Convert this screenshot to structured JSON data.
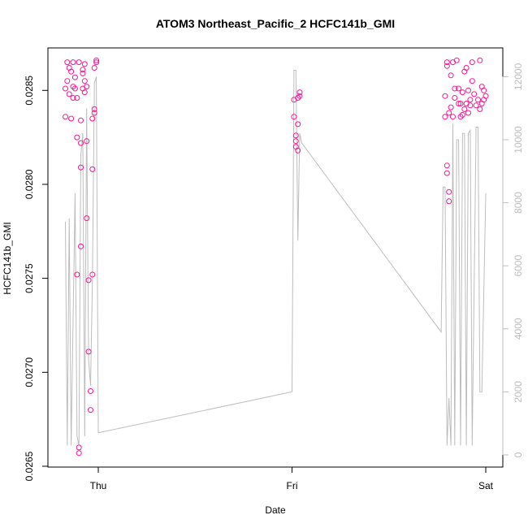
{
  "chart_data": {
    "type": "scatter",
    "title": "ATOM3 Northeast_Pacific_2 HCFC141b_GMI",
    "xlabel": "Date",
    "ylabel": "HCFC141b_GMI",
    "x_ticks": [
      "Thu",
      "Fri",
      "Sat"
    ],
    "x_range_days": [
      -0.2,
      2.0
    ],
    "ylim": [
      0.0265,
      0.0287
    ],
    "y_ticks": [
      "0.0265",
      "0.0270",
      "0.0275",
      "0.0280",
      "0.0285"
    ],
    "y2_ticks": [
      "0",
      "2000",
      "4000",
      "6000",
      "8000",
      "10000",
      "12000"
    ],
    "y2lim": [
      0,
      12500
    ],
    "grid": false,
    "colors": {
      "points": "#ff1493",
      "altitude_line": "#bdbdbd",
      "axes": "#000000"
    },
    "series": [
      {
        "marker": "open-circle",
        "axis": "left",
        "points": [
          [
            -0.17,
            0.02836
          ],
          [
            -0.17,
            0.02851
          ],
          [
            -0.16,
            0.02855
          ],
          [
            -0.16,
            0.02865
          ],
          [
            -0.15,
            0.02862
          ],
          [
            -0.15,
            0.02848
          ],
          [
            -0.14,
            0.02835
          ],
          [
            -0.14,
            0.0286
          ],
          [
            -0.13,
            0.02852
          ],
          [
            -0.13,
            0.02846
          ],
          [
            -0.13,
            0.02865
          ],
          [
            -0.12,
            0.02851
          ],
          [
            -0.12,
            0.02857
          ],
          [
            -0.11,
            0.02846
          ],
          [
            -0.11,
            0.02825
          ],
          [
            -0.11,
            0.02752
          ],
          [
            -0.1,
            0.0266
          ],
          [
            -0.1,
            0.02657
          ],
          [
            -0.1,
            0.02865
          ],
          [
            -0.09,
            0.02809
          ],
          [
            -0.09,
            0.02767
          ],
          [
            -0.09,
            0.02822
          ],
          [
            -0.09,
            0.02834
          ],
          [
            -0.08,
            0.02851
          ],
          [
            -0.08,
            0.02861
          ],
          [
            -0.08,
            0.02859
          ],
          [
            -0.07,
            0.02864
          ],
          [
            -0.07,
            0.02849
          ],
          [
            -0.07,
            0.02855
          ],
          [
            -0.06,
            0.02852
          ],
          [
            -0.06,
            0.02823
          ],
          [
            -0.06,
            0.02782
          ],
          [
            -0.05,
            0.02749
          ],
          [
            -0.05,
            0.02711
          ],
          [
            -0.04,
            0.0269
          ],
          [
            -0.04,
            0.0268
          ],
          [
            -0.03,
            0.02808
          ],
          [
            -0.03,
            0.02835
          ],
          [
            -0.03,
            0.02752
          ],
          [
            -0.02,
            0.02838
          ],
          [
            -0.02,
            0.0284
          ],
          [
            -0.02,
            0.02862
          ],
          [
            -0.01,
            0.02866
          ],
          [
            -0.01,
            0.02865
          ],
          [
            1.01,
            0.02845
          ],
          [
            1.01,
            0.02836
          ],
          [
            1.02,
            0.02826
          ],
          [
            1.02,
            0.02823
          ],
          [
            1.02,
            0.0282
          ],
          [
            1.03,
            0.02818
          ],
          [
            1.03,
            0.02832
          ],
          [
            1.03,
            0.02846
          ],
          [
            1.04,
            0.02849
          ],
          [
            1.04,
            0.02847
          ],
          [
            1.79,
            0.02847
          ],
          [
            1.79,
            0.02836
          ],
          [
            1.8,
            0.02865
          ],
          [
            1.8,
            0.02863
          ],
          [
            1.8,
            0.0281
          ],
          [
            1.8,
            0.02806
          ],
          [
            1.81,
            0.02796
          ],
          [
            1.81,
            0.02791
          ],
          [
            1.81,
            0.02838
          ],
          [
            1.82,
            0.02858
          ],
          [
            1.82,
            0.02841
          ],
          [
            1.83,
            0.02865
          ],
          [
            1.83,
            0.02836
          ],
          [
            1.84,
            0.02851
          ],
          [
            1.84,
            0.02846
          ],
          [
            1.85,
            0.02866
          ],
          [
            1.86,
            0.02843
          ],
          [
            1.86,
            0.02851
          ],
          [
            1.87,
            0.02836
          ],
          [
            1.87,
            0.02843
          ],
          [
            1.88,
            0.02849
          ],
          [
            1.88,
            0.02837
          ],
          [
            1.89,
            0.0286
          ],
          [
            1.89,
            0.0284
          ],
          [
            1.9,
            0.02843
          ],
          [
            1.9,
            0.02862
          ],
          [
            1.91,
            0.0285
          ],
          [
            1.91,
            0.02838
          ],
          [
            1.92,
            0.02842
          ],
          [
            1.92,
            0.02845
          ],
          [
            1.93,
            0.02865
          ],
          [
            1.93,
            0.02855
          ],
          [
            1.94,
            0.02848
          ],
          [
            1.95,
            0.02842
          ],
          [
            1.96,
            0.02845
          ],
          [
            1.97,
            0.0284
          ],
          [
            1.97,
            0.02866
          ],
          [
            1.98,
            0.02852
          ],
          [
            1.98,
            0.02843
          ],
          [
            1.99,
            0.0285
          ],
          [
            1.99,
            0.02845
          ],
          [
            2.0,
            0.02847
          ]
        ]
      },
      {
        "marker": "line",
        "axis": "right",
        "points": [
          [
            -0.17,
            7400
          ],
          [
            -0.16,
            300
          ],
          [
            -0.15,
            7500
          ],
          [
            -0.14,
            300
          ],
          [
            -0.12,
            8300
          ],
          [
            -0.11,
            600
          ],
          [
            -0.1,
            300
          ],
          [
            -0.09,
            9500
          ],
          [
            -0.08,
            10200
          ],
          [
            -0.07,
            600
          ],
          [
            -0.06,
            11000
          ],
          [
            -0.05,
            3000
          ],
          [
            -0.04,
            2200
          ],
          [
            -0.03,
            5600
          ],
          [
            -0.02,
            11800
          ],
          [
            -0.01,
            12000
          ],
          [
            0.0,
            700
          ],
          [
            1.0,
            2000
          ],
          [
            1.01,
            12200
          ],
          [
            1.02,
            12200
          ],
          [
            1.03,
            6800
          ],
          [
            1.04,
            10200
          ],
          [
            1.05,
            9900
          ],
          [
            1.77,
            3900
          ],
          [
            1.78,
            8500
          ],
          [
            1.79,
            8500
          ],
          [
            1.8,
            300
          ],
          [
            1.81,
            1800
          ],
          [
            1.82,
            300
          ],
          [
            1.83,
            10500
          ],
          [
            1.84,
            300
          ],
          [
            1.85,
            10000
          ],
          [
            1.86,
            10000
          ],
          [
            1.87,
            300
          ],
          [
            1.88,
            10200
          ],
          [
            1.89,
            10200
          ],
          [
            1.9,
            300
          ],
          [
            1.91,
            10200
          ],
          [
            1.92,
            10300
          ],
          [
            1.93,
            300
          ],
          [
            1.95,
            10400
          ],
          [
            1.96,
            10400
          ],
          [
            1.97,
            2000
          ],
          [
            1.98,
            2000
          ],
          [
            2.0,
            8300
          ]
        ]
      }
    ]
  }
}
